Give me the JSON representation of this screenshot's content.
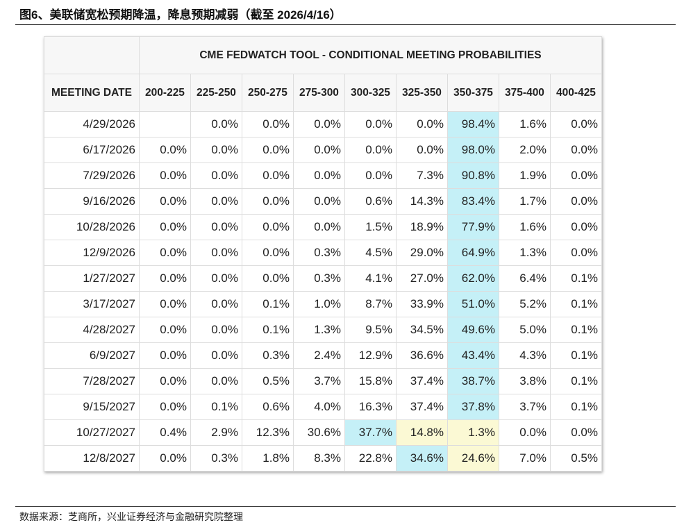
{
  "title": "图6、美联储宽松预期降温，降息预期减弱（截至 2026/4/16）",
  "source": "数据来源：芝商所，兴业证券经济与金融研究院整理",
  "colors": {
    "cyan_highlight": "#c5f0f7",
    "yellow_highlight": "#fbf9d4"
  },
  "table": {
    "caption": "CME FEDWATCH TOOL - CONDITIONAL MEETING PROBABILITIES",
    "headers": [
      "MEETING DATE",
      "200-225",
      "225-250",
      "250-275",
      "275-300",
      "300-325",
      "325-350",
      "350-375",
      "375-400",
      "400-425"
    ],
    "rows": [
      {
        "date": "4/29/2026",
        "values": [
          "",
          "0.0%",
          "0.0%",
          "0.0%",
          "0.0%",
          "0.0%",
          "98.4%",
          "1.6%",
          "0.0%"
        ],
        "cyan": [
          6
        ],
        "yellow": []
      },
      {
        "date": "6/17/2026",
        "values": [
          "0.0%",
          "0.0%",
          "0.0%",
          "0.0%",
          "0.0%",
          "0.0%",
          "98.0%",
          "2.0%",
          "0.0%"
        ],
        "cyan": [
          6
        ],
        "yellow": []
      },
      {
        "date": "7/29/2026",
        "values": [
          "0.0%",
          "0.0%",
          "0.0%",
          "0.0%",
          "0.0%",
          "7.3%",
          "90.8%",
          "1.9%",
          "0.0%"
        ],
        "cyan": [
          6
        ],
        "yellow": []
      },
      {
        "date": "9/16/2026",
        "values": [
          "0.0%",
          "0.0%",
          "0.0%",
          "0.0%",
          "0.6%",
          "14.3%",
          "83.4%",
          "1.7%",
          "0.0%"
        ],
        "cyan": [
          6
        ],
        "yellow": []
      },
      {
        "date": "10/28/2026",
        "values": [
          "0.0%",
          "0.0%",
          "0.0%",
          "0.0%",
          "1.5%",
          "18.9%",
          "77.9%",
          "1.6%",
          "0.0%"
        ],
        "cyan": [
          6
        ],
        "yellow": []
      },
      {
        "date": "12/9/2026",
        "values": [
          "0.0%",
          "0.0%",
          "0.0%",
          "0.3%",
          "4.5%",
          "29.0%",
          "64.9%",
          "1.3%",
          "0.0%"
        ],
        "cyan": [
          6
        ],
        "yellow": []
      },
      {
        "date": "1/27/2027",
        "values": [
          "0.0%",
          "0.0%",
          "0.0%",
          "0.3%",
          "4.1%",
          "27.0%",
          "62.0%",
          "6.4%",
          "0.1%"
        ],
        "cyan": [
          6
        ],
        "yellow": []
      },
      {
        "date": "3/17/2027",
        "values": [
          "0.0%",
          "0.0%",
          "0.1%",
          "1.0%",
          "8.7%",
          "33.9%",
          "51.0%",
          "5.2%",
          "0.1%"
        ],
        "cyan": [
          6
        ],
        "yellow": []
      },
      {
        "date": "4/28/2027",
        "values": [
          "0.0%",
          "0.0%",
          "0.1%",
          "1.3%",
          "9.5%",
          "34.5%",
          "49.6%",
          "5.0%",
          "0.1%"
        ],
        "cyan": [
          6
        ],
        "yellow": []
      },
      {
        "date": "6/9/2027",
        "values": [
          "0.0%",
          "0.0%",
          "0.3%",
          "2.4%",
          "12.9%",
          "36.6%",
          "43.4%",
          "4.3%",
          "0.1%"
        ],
        "cyan": [
          6
        ],
        "yellow": []
      },
      {
        "date": "7/28/2027",
        "values": [
          "0.0%",
          "0.0%",
          "0.5%",
          "3.7%",
          "15.8%",
          "37.4%",
          "38.7%",
          "3.8%",
          "0.1%"
        ],
        "cyan": [
          6
        ],
        "yellow": []
      },
      {
        "date": "9/15/2027",
        "values": [
          "0.0%",
          "0.1%",
          "0.6%",
          "4.0%",
          "16.3%",
          "37.4%",
          "37.8%",
          "3.7%",
          "0.1%"
        ],
        "cyan": [
          6
        ],
        "yellow": []
      },
      {
        "date": "10/27/2027",
        "values": [
          "0.4%",
          "2.9%",
          "12.3%",
          "30.6%",
          "37.7%",
          "14.8%",
          "1.3%",
          "0.0%",
          "0.0%"
        ],
        "cyan": [
          4
        ],
        "yellow": [
          5,
          6
        ]
      },
      {
        "date": "12/8/2027",
        "values": [
          "0.0%",
          "0.3%",
          "1.8%",
          "8.3%",
          "22.8%",
          "34.6%",
          "24.6%",
          "7.0%",
          "0.5%"
        ],
        "cyan": [
          5
        ],
        "yellow": [
          6
        ]
      }
    ]
  }
}
